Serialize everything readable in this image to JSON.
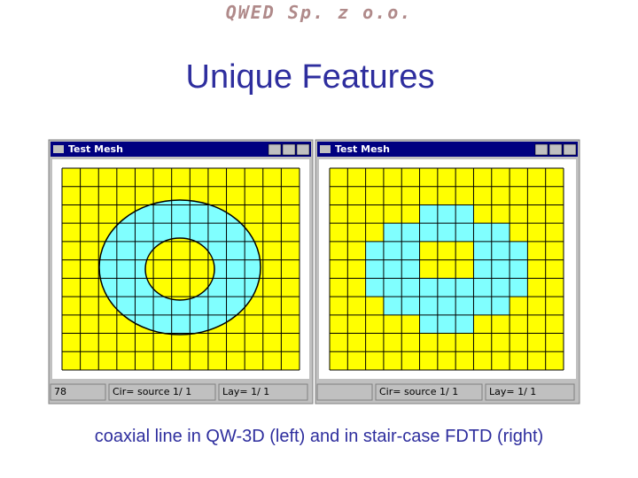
{
  "header": "QWED Sp. z o.o.",
  "title": "Unique Features",
  "windows": [
    {
      "title": "Test Mesh",
      "status": [
        "78",
        "Cir=  source  1/ 1",
        "Lay=   1/  1"
      ]
    },
    {
      "title": "Test Mesh",
      "status": [
        "Cir=  source  1/ 1",
        "Lay=   1/  1"
      ]
    }
  ],
  "caption": "coaxial line in QW-3D (left) and in stair-case FDTD (right)"
}
